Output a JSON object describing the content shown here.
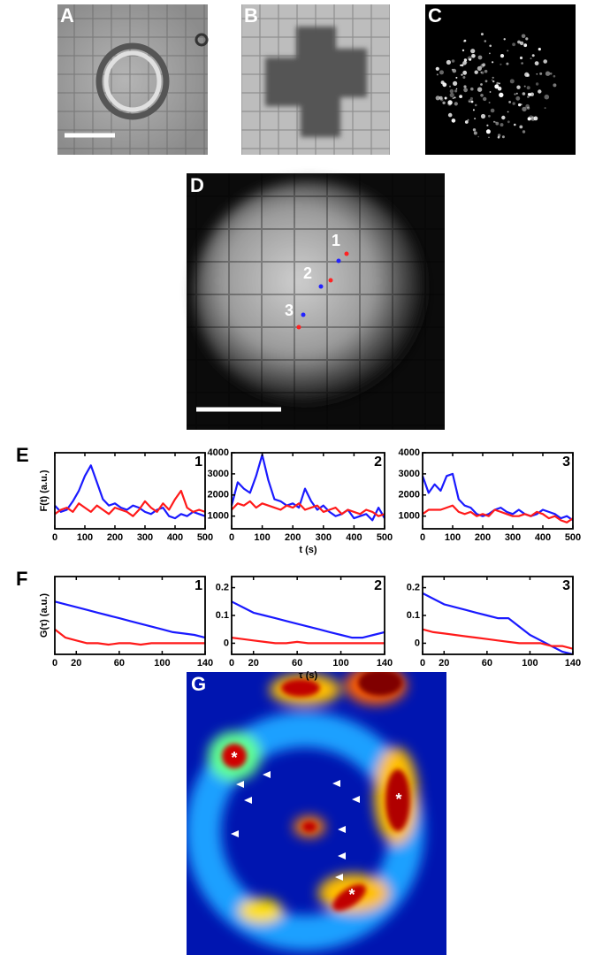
{
  "panels": [
    {
      "label": "A"
    },
    {
      "label": "B"
    },
    {
      "label": "C"
    },
    {
      "label": "D",
      "annotations": [
        "1",
        "2",
        "3"
      ]
    },
    {
      "label": "G",
      "annotations": [
        "*",
        "*",
        "*"
      ]
    }
  ],
  "chart_data": [
    {
      "type": "line",
      "panel_label": "E",
      "subplot_label": "1",
      "ylabel": "F(t) (a.u.)",
      "x": [
        0,
        20,
        40,
        60,
        80,
        100,
        120,
        140,
        160,
        180,
        200,
        220,
        240,
        260,
        280,
        300,
        320,
        340,
        360,
        380,
        400,
        420,
        440,
        460,
        480,
        500
      ],
      "xlim": [
        0,
        500
      ],
      "xticks": [
        0,
        100,
        200,
        300,
        400,
        500
      ],
      "ylim": [
        400,
        4000
      ],
      "series": [
        {
          "color": "#1a1aff",
          "values": [
            1500,
            1200,
            1300,
            1700,
            2200,
            2900,
            3400,
            2600,
            1800,
            1500,
            1600,
            1400,
            1300,
            1500,
            1400,
            1200,
            1100,
            1300,
            1400,
            1000,
            900,
            1100,
            1000,
            1200,
            1100,
            1000
          ]
        },
        {
          "color": "#ff1a1a",
          "values": [
            1100,
            1300,
            1400,
            1200,
            1600,
            1400,
            1200,
            1500,
            1300,
            1100,
            1400,
            1300,
            1200,
            1000,
            1300,
            1700,
            1400,
            1200,
            1600,
            1300,
            1800,
            2200,
            1400,
            1200,
            1300,
            1200
          ]
        }
      ]
    },
    {
      "type": "line",
      "subplot_label": "2",
      "xlabel": "t (s)",
      "x": [
        0,
        20,
        40,
        60,
        80,
        100,
        120,
        140,
        160,
        180,
        200,
        220,
        240,
        260,
        280,
        300,
        320,
        340,
        360,
        380,
        400,
        420,
        440,
        460,
        480,
        500
      ],
      "xlim": [
        0,
        500
      ],
      "xticks": [
        0,
        100,
        200,
        300,
        400,
        500
      ],
      "ylim": [
        400,
        4000
      ],
      "yticks": [
        1000,
        2000,
        3000,
        4000
      ],
      "series": [
        {
          "color": "#1a1aff",
          "values": [
            1500,
            2600,
            2300,
            2100,
            2900,
            3900,
            2700,
            1800,
            1700,
            1500,
            1600,
            1400,
            2300,
            1700,
            1300,
            1500,
            1200,
            1000,
            1100,
            1300,
            900,
            1000,
            1100,
            800,
            1400,
            900
          ]
        },
        {
          "color": "#ff1a1a",
          "values": [
            1300,
            1600,
            1500,
            1700,
            1400,
            1600,
            1500,
            1400,
            1300,
            1500,
            1400,
            1600,
            1300,
            1400,
            1500,
            1200,
            1300,
            1400,
            1100,
            1300,
            1200,
            1100,
            1300,
            1200,
            1000,
            1100
          ]
        }
      ]
    },
    {
      "type": "line",
      "subplot_label": "3",
      "x": [
        0,
        20,
        40,
        60,
        80,
        100,
        120,
        140,
        160,
        180,
        200,
        220,
        240,
        260,
        280,
        300,
        320,
        340,
        360,
        380,
        400,
        420,
        440,
        460,
        480,
        500
      ],
      "xlim": [
        0,
        500
      ],
      "xticks": [
        0,
        100,
        200,
        300,
        400,
        500
      ],
      "ylim": [
        400,
        4000
      ],
      "yticks": [
        1000,
        2000,
        3000,
        4000
      ],
      "series": [
        {
          "color": "#1a1aff",
          "values": [
            2900,
            2100,
            2500,
            2200,
            2900,
            3000,
            1800,
            1500,
            1400,
            1100,
            1000,
            1100,
            1300,
            1400,
            1200,
            1100,
            1300,
            1100,
            1000,
            1100,
            1300,
            1200,
            1100,
            900,
            1000,
            800
          ]
        },
        {
          "color": "#ff1a1a",
          "values": [
            1100,
            1300,
            1300,
            1300,
            1400,
            1500,
            1200,
            1100,
            1200,
            1000,
            1100,
            1000,
            1300,
            1200,
            1100,
            1000,
            1000,
            1100,
            1000,
            1200,
            1100,
            900,
            1000,
            800,
            700,
            900
          ]
        }
      ]
    },
    {
      "type": "line",
      "panel_label": "F",
      "subplot_label": "1",
      "ylabel": "G(τ) (a.u.)",
      "x": [
        0,
        10,
        20,
        30,
        40,
        50,
        60,
        70,
        80,
        90,
        100,
        110,
        120,
        130,
        140
      ],
      "xlim": [
        0,
        140
      ],
      "xticks": [
        0,
        20,
        60,
        100,
        140
      ],
      "ylim": [
        -0.04,
        0.24
      ],
      "series": [
        {
          "color": "#1a1aff",
          "values": [
            0.15,
            0.14,
            0.13,
            0.12,
            0.11,
            0.1,
            0.09,
            0.08,
            0.07,
            0.06,
            0.05,
            0.04,
            0.035,
            0.03,
            0.02
          ]
        },
        {
          "color": "#ff1a1a",
          "values": [
            0.05,
            0.02,
            0.01,
            0,
            0,
            -0.005,
            0,
            0,
            -0.005,
            0,
            0,
            0,
            0,
            0,
            0
          ]
        }
      ]
    },
    {
      "type": "line",
      "subplot_label": "2",
      "xlabel": "τ (s)",
      "x": [
        0,
        10,
        20,
        30,
        40,
        50,
        60,
        70,
        80,
        90,
        100,
        110,
        120,
        130,
        140
      ],
      "xlim": [
        0,
        140
      ],
      "xticks": [
        0,
        20,
        60,
        100,
        140
      ],
      "ylim": [
        -0.04,
        0.24
      ],
      "yticks": [
        0,
        0.1,
        0.2
      ],
      "series": [
        {
          "color": "#1a1aff",
          "values": [
            0.15,
            0.13,
            0.11,
            0.1,
            0.09,
            0.08,
            0.07,
            0.06,
            0.05,
            0.04,
            0.03,
            0.02,
            0.02,
            0.03,
            0.04
          ]
        },
        {
          "color": "#ff1a1a",
          "values": [
            0.02,
            0.015,
            0.01,
            0.005,
            0,
            0,
            0.005,
            0,
            0,
            0,
            0,
            0,
            0,
            0,
            0
          ]
        }
      ]
    },
    {
      "type": "line",
      "subplot_label": "3",
      "x": [
        0,
        10,
        20,
        30,
        40,
        50,
        60,
        70,
        80,
        90,
        100,
        110,
        120,
        130,
        140
      ],
      "xlim": [
        0,
        140
      ],
      "xticks": [
        0,
        20,
        60,
        100,
        140
      ],
      "ylim": [
        -0.04,
        0.24
      ],
      "yticks": [
        0,
        0.1,
        0.2
      ],
      "series": [
        {
          "color": "#1a1aff",
          "values": [
            0.18,
            0.16,
            0.14,
            0.13,
            0.12,
            0.11,
            0.1,
            0.09,
            0.09,
            0.06,
            0.03,
            0.01,
            -0.01,
            -0.03,
            -0.04
          ]
        },
        {
          "color": "#ff1a1a",
          "values": [
            0.05,
            0.04,
            0.035,
            0.03,
            0.025,
            0.02,
            0.015,
            0.01,
            0.005,
            0,
            0,
            0,
            -0.01,
            -0.01,
            -0.02
          ]
        }
      ]
    }
  ]
}
